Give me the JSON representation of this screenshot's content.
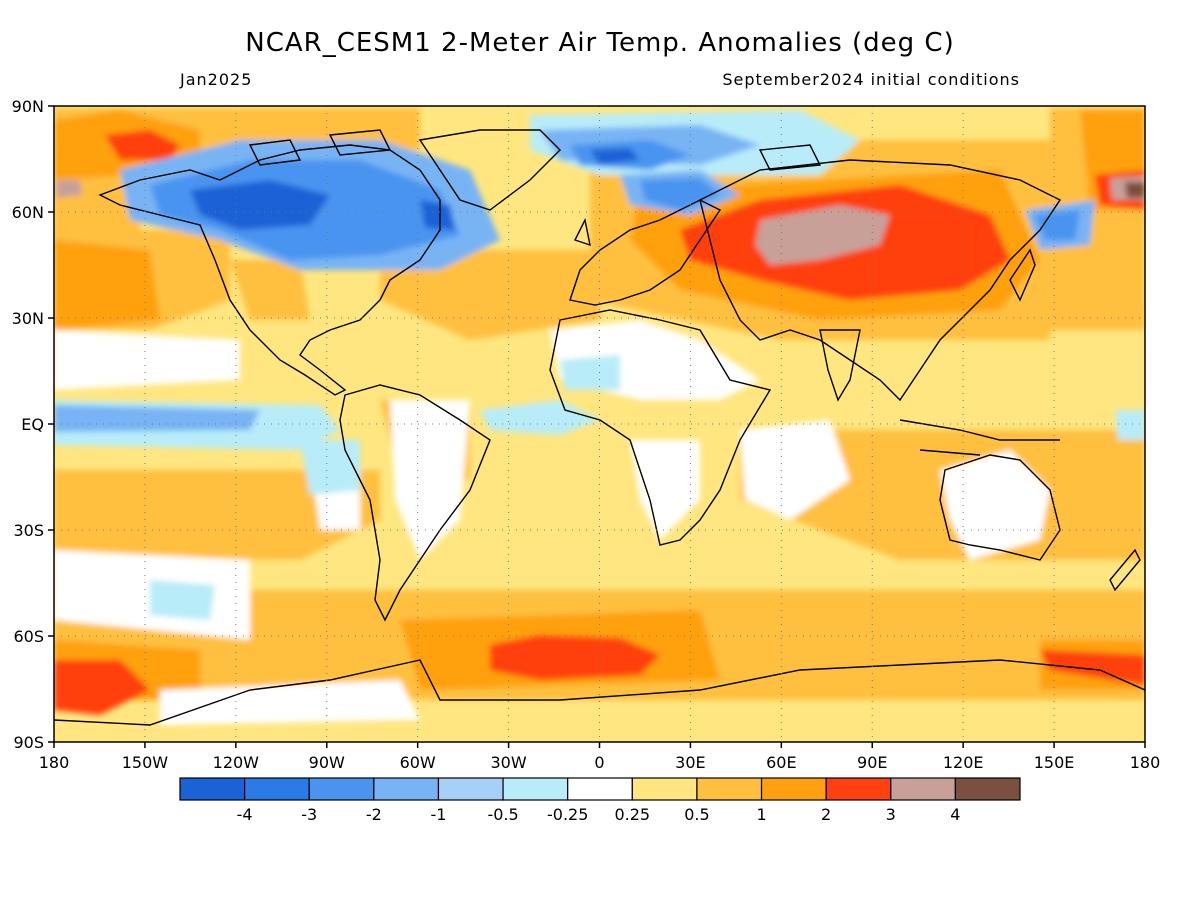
{
  "title": "NCAR_CESM1 2-Meter Air Temp. Anomalies (deg C)",
  "subtitle_left": "Jan2025",
  "subtitle_right": "September2024 initial conditions",
  "lat_ticks": [
    "90N",
    "60N",
    "30N",
    "EQ",
    "30S",
    "60S",
    "90S"
  ],
  "lon_ticks": [
    "180",
    "150W",
    "120W",
    "90W",
    "60W",
    "30W",
    "0",
    "30E",
    "60E",
    "90E",
    "120E",
    "150E",
    "180"
  ],
  "colorbar": {
    "colors": [
      "#1a62d6",
      "#2a7ae8",
      "#4a94f0",
      "#78b4f4",
      "#a6d0f8",
      "#b8ecf8",
      "#ffffff",
      "#ffe680",
      "#ffc040",
      "#ffa010",
      "#ff4010",
      "#c8a098",
      "#7a5040"
    ],
    "labels": [
      "-4",
      "-3",
      "-2",
      "-1",
      "-0.5",
      "-0.25",
      "0.25",
      "0.5",
      "1",
      "2",
      "3",
      "4"
    ]
  },
  "colors": {
    "ocean_base": "#ffe680",
    "warm": "#ffc040",
    "warmer": "#ffa010",
    "hot": "#ff4010",
    "very_hot": "#c8a098",
    "extreme": "#7a5040",
    "neutral": "#ffffff",
    "cool": "#b8ecf8",
    "cold": "#78b4f4",
    "colder": "#4a94f0",
    "coldest": "#1a62d6"
  },
  "map": {
    "lon_range": [
      -180,
      180
    ],
    "lat_range": [
      -90,
      90
    ],
    "grid": true
  }
}
